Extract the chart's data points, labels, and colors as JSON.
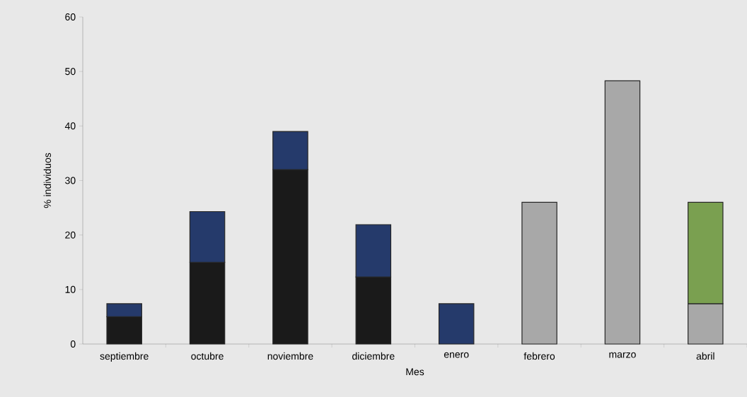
{
  "chart_data": {
    "type": "bar",
    "stacked": true,
    "xlabel": "Mes",
    "ylabel": "% individuos",
    "categories": [
      "septiembre",
      "octubre",
      "noviembre",
      "diciembre",
      "enero",
      "febrero",
      "marzo",
      "abril"
    ],
    "series": [
      {
        "color": "#1a1a1a",
        "values": [
          5,
          15,
          32,
          12.3,
          null,
          null,
          null,
          null
        ]
      },
      {
        "color": "#253a6b",
        "values": [
          2.4,
          9.3,
          7,
          9.6,
          7.4,
          null,
          null,
          null
        ]
      },
      {
        "color": "#a8a8a8",
        "values": [
          null,
          null,
          null,
          null,
          null,
          26,
          48.3,
          7.4
        ]
      },
      {
        "color": "#7aa050",
        "values": [
          null,
          null,
          null,
          null,
          null,
          null,
          null,
          18.6
        ]
      }
    ],
    "ylim": [
      0,
      60
    ],
    "yticks": [
      0,
      10,
      20,
      30,
      40,
      50,
      60
    ]
  }
}
